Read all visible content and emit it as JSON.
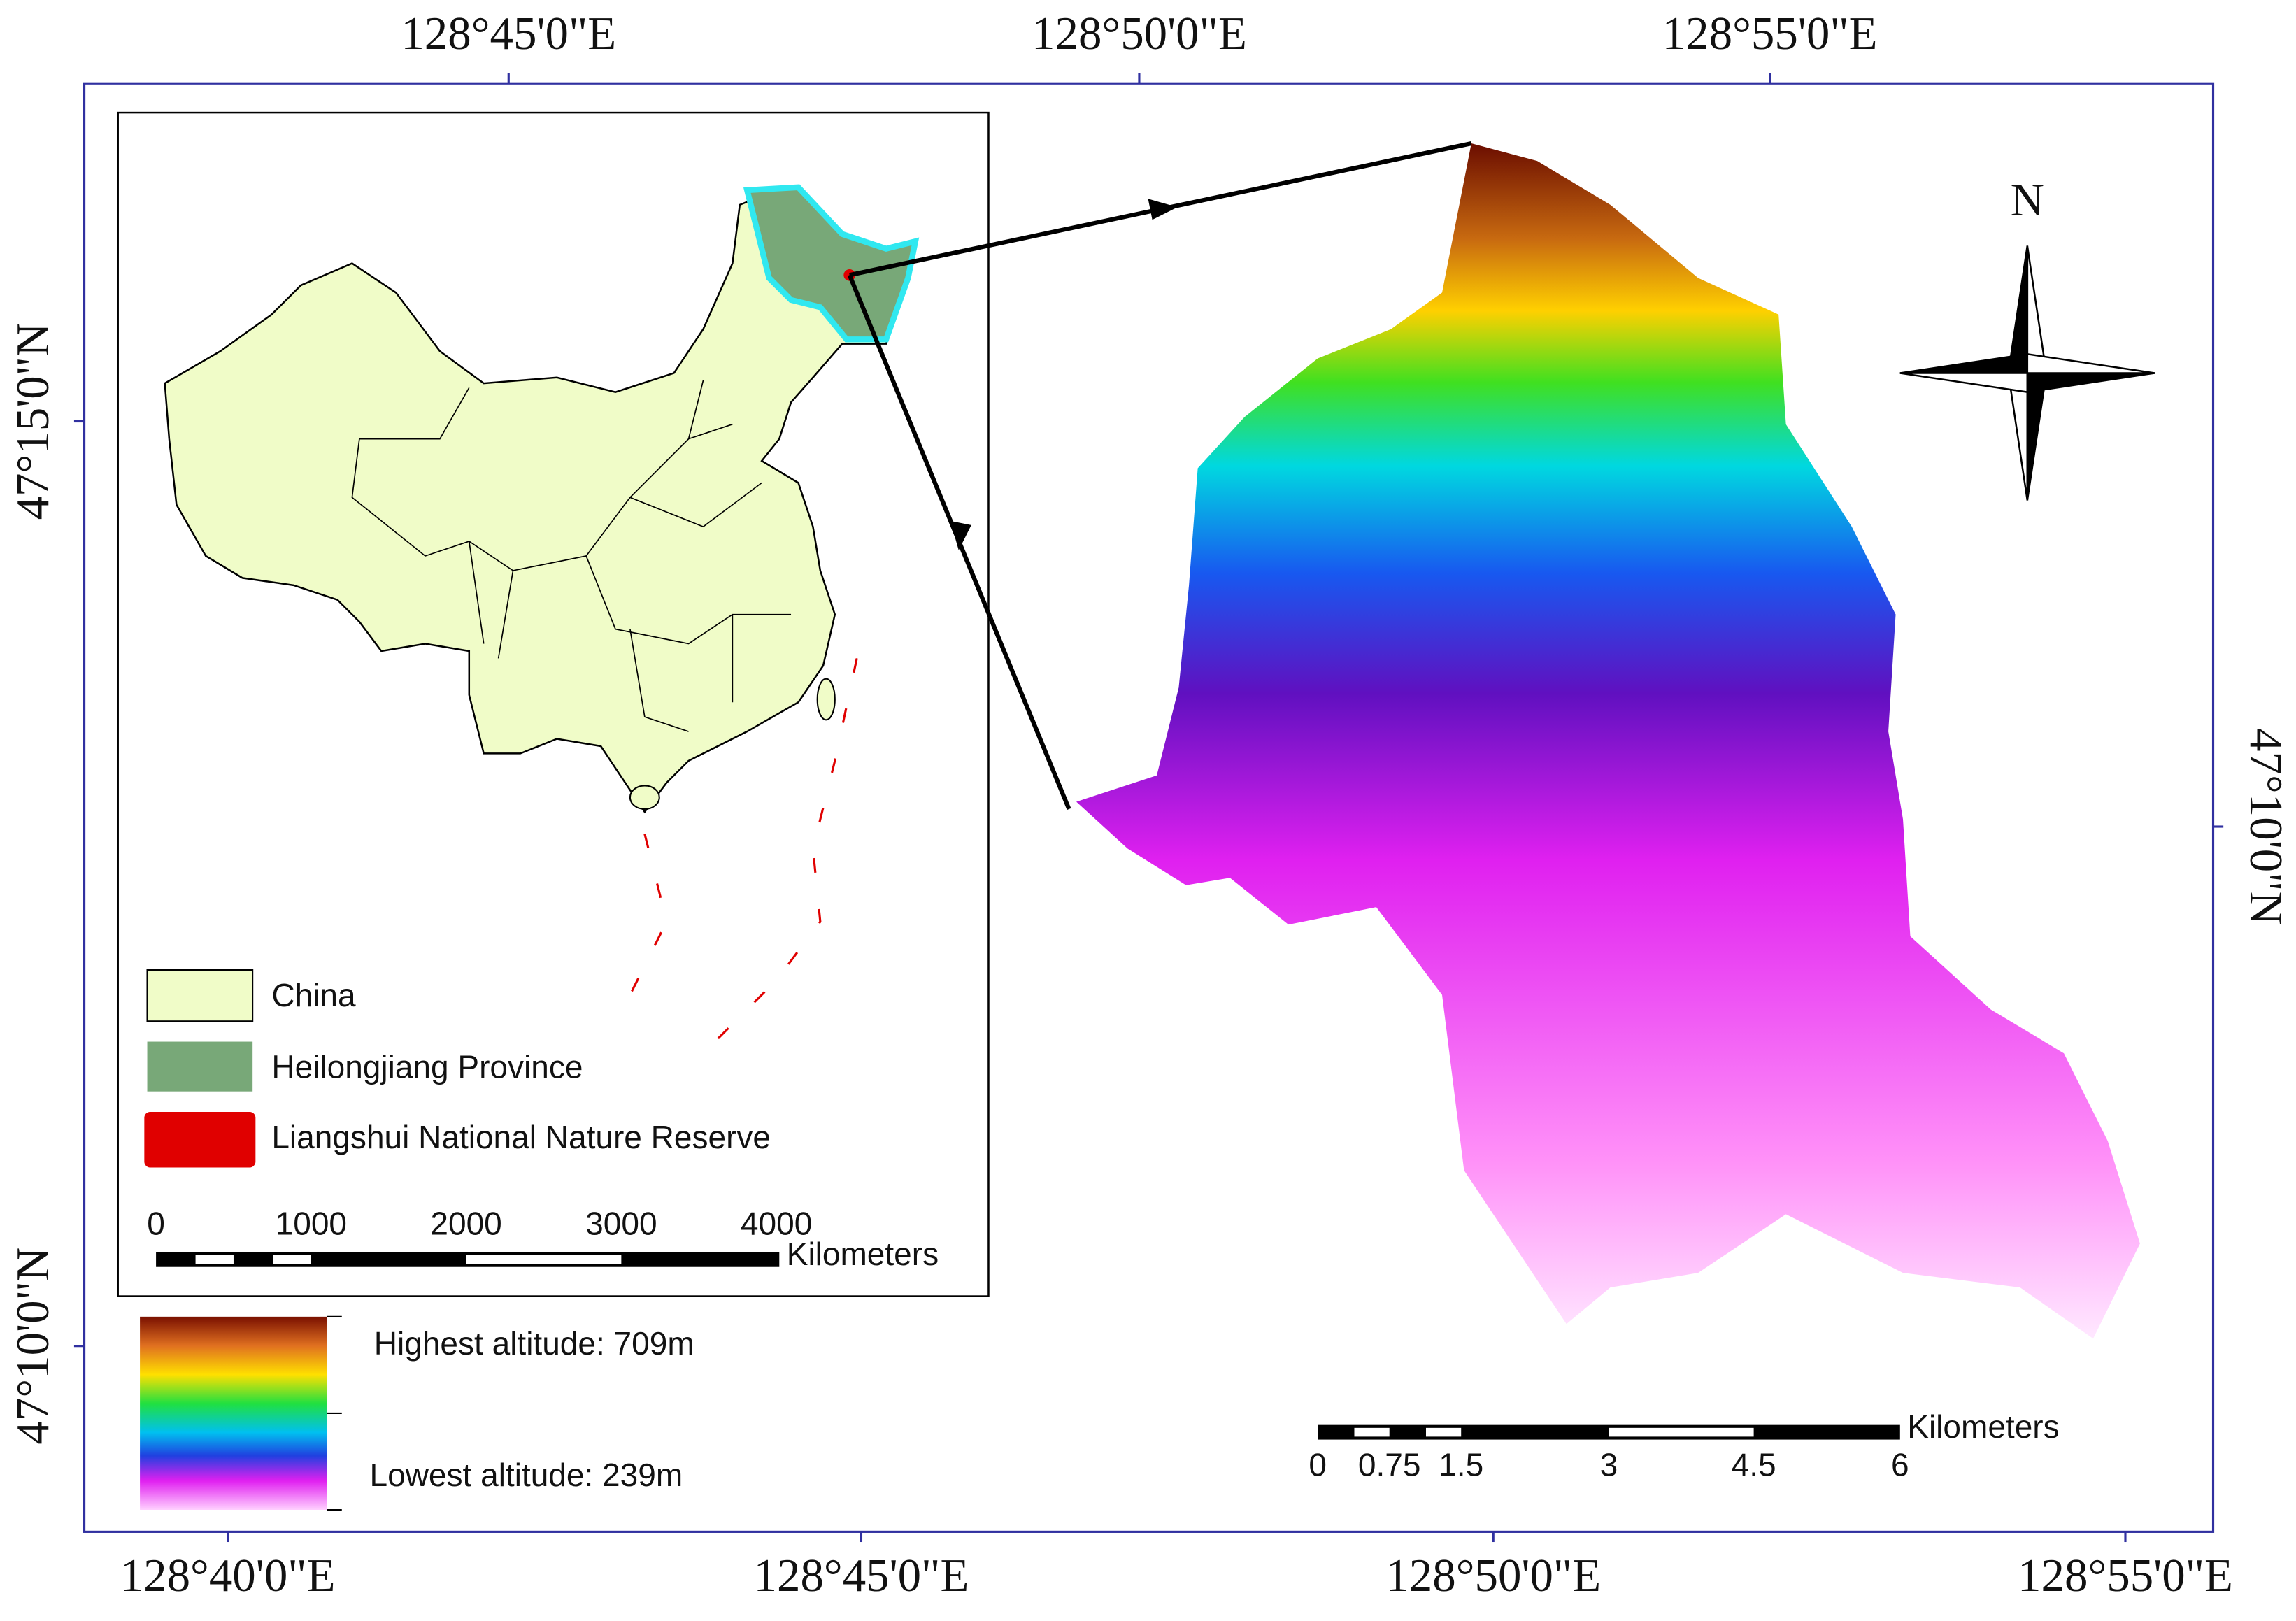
{
  "axes": {
    "top": [
      "128°45'0\"E",
      "128°50'0\"E",
      "128°55'0\"E"
    ],
    "bottom": [
      "128°40'0\"E",
      "128°45'0\"E",
      "128°50'0\"E",
      "128°55'0\"E"
    ],
    "left": [
      "47°15'0\"N",
      "47°10'0\"N"
    ],
    "right": [
      "47°10'0\"N"
    ]
  },
  "inset": {
    "legend": [
      "China",
      "Heilongjiang Province",
      "Liangshui National Nature Reserve"
    ],
    "scale_bar": {
      "labels": [
        "0",
        "1000",
        "2000",
        "3000",
        "4000"
      ],
      "unit": "Kilometers"
    }
  },
  "elevation_legend": {
    "high": "Highest altitude: 709m",
    "low": "Lowest altitude: 239m"
  },
  "north_arrow": "N",
  "scale_bar": {
    "labels": [
      "0",
      "0.75",
      "1.5",
      "3",
      "4.5",
      "6"
    ],
    "unit": "Kilometers"
  }
}
